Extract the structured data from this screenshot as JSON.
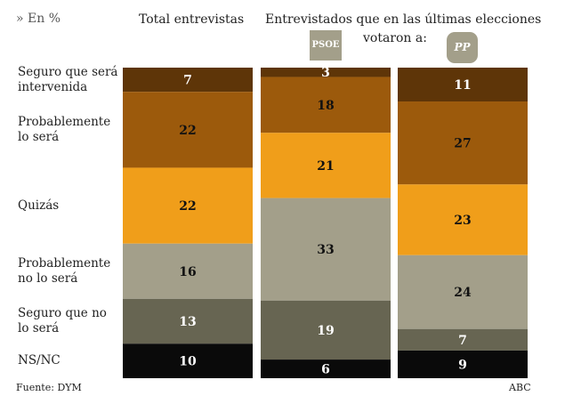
{
  "header": {
    "unit": "» En %",
    "col1": "Total entrevistas",
    "col2": "Entrevistados que en las últimas elecciones",
    "col2b": "votaron a:",
    "logo1": "PSOE",
    "logo2": "PP"
  },
  "footer": {
    "source": "Fuente: DYM",
    "credit": "ABC"
  },
  "chart_data": {
    "type": "bar",
    "stacked": true,
    "categories": [
      "Total entrevistas",
      "PSOE",
      "PP"
    ],
    "series": [
      {
        "name": "Seguro que será intervenida",
        "label": "Seguro que será\nintervenida",
        "color": "#5e3508",
        "text_color": "#ffffff",
        "values": [
          7,
          3,
          11
        ]
      },
      {
        "name": "Probablemente lo será",
        "label": "Probablemente\nlo será",
        "color": "#9c5a0c",
        "text_color": "#111111",
        "values": [
          22,
          18,
          27
        ]
      },
      {
        "name": "Quizás",
        "label": "Quizás",
        "color": "#f09e1a",
        "text_color": "#111111",
        "values": [
          22,
          21,
          23
        ]
      },
      {
        "name": "Probablemente no lo será",
        "label": "Probablemente\nno lo será",
        "color": "#a39f8a",
        "text_color": "#111111",
        "values": [
          16,
          33,
          24
        ]
      },
      {
        "name": "Seguro que no lo será",
        "label": "Seguro que no\nlo será",
        "color": "#676552",
        "text_color": "#ffffff",
        "values": [
          13,
          19,
          7
        ]
      },
      {
        "name": "NS/NC",
        "label": "NS/NC",
        "color": "#0a0a0a",
        "text_color": "#ffffff",
        "values": [
          10,
          6,
          9
        ]
      }
    ]
  }
}
